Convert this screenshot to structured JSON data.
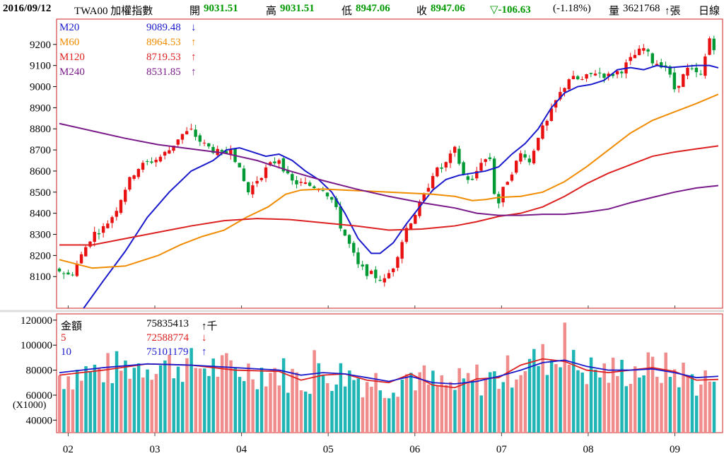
{
  "header": {
    "date": "2016/09/12",
    "index_name": "TWA00 加權指數",
    "open_label": "開",
    "open": "9031.51",
    "high_label": "高",
    "high": "9031.51",
    "low_label": "低",
    "low": "8947.06",
    "close_label": "收",
    "close": "8947.06",
    "change": "▽-106.63",
    "change_pct": "(-1.18%)",
    "volume_label": "量",
    "volume": "3621768",
    "volume_unit": "↑張",
    "period": "日線"
  },
  "legend_price": [
    {
      "name": "M20",
      "value": "9089.48",
      "arrow": "↓",
      "color": "#1a1acc"
    },
    {
      "name": "M60",
      "value": "8964.53",
      "arrow": "↑",
      "color": "#f08c00"
    },
    {
      "name": "M120",
      "value": "8719.53",
      "arrow": "↑",
      "color": "#dd2020"
    },
    {
      "name": "M240",
      "value": "8531.85",
      "arrow": "↑",
      "color": "#7a1a8a"
    }
  ],
  "legend_volume": [
    {
      "name": "金額",
      "value": "75835413",
      "arrow": "↑千",
      "color": "#000000"
    },
    {
      "name": "5",
      "value": "72588774",
      "arrow": "↓",
      "color": "#dd2020"
    },
    {
      "name": "10",
      "value": "75101179",
      "arrow": "↑",
      "color": "#1a1acc"
    }
  ],
  "volume_unit_label": "(X1000)",
  "chart_data": [
    {
      "type": "line",
      "candlestick": true,
      "x_tick_labels": [
        "02",
        "03",
        "04",
        "05",
        "06",
        "07",
        "08",
        "09"
      ],
      "y_tick_labels": [
        "8100",
        "8200",
        "8300",
        "8400",
        "8500",
        "8600",
        "8700",
        "8800",
        "8900",
        "9000",
        "9100",
        "9200"
      ],
      "ylim": [
        7950,
        9320
      ],
      "colors": {
        "up": "#e81010",
        "down": "#009933"
      },
      "series": [
        {
          "name": "M20",
          "color": "#1a1acc",
          "points": [
            [
              0,
              7800
            ],
            [
              10,
              7935
            ],
            [
              20,
              8080
            ],
            [
              30,
              8220
            ],
            [
              40,
              8380
            ],
            [
              50,
              8500
            ],
            [
              60,
              8600
            ],
            [
              70,
              8650
            ],
            [
              76,
              8700
            ],
            [
              82,
              8710
            ],
            [
              88,
              8690
            ],
            [
              94,
              8670
            ],
            [
              100,
              8680
            ],
            [
              106,
              8650
            ],
            [
              112,
              8600
            ],
            [
              118,
              8560
            ],
            [
              124,
              8500
            ],
            [
              130,
              8400
            ],
            [
              136,
              8280
            ],
            [
              142,
              8210
            ],
            [
              146,
              8210
            ],
            [
              152,
              8260
            ],
            [
              158,
              8350
            ],
            [
              164,
              8430
            ],
            [
              170,
              8510
            ],
            [
              176,
              8560
            ],
            [
              182,
              8580
            ],
            [
              188,
              8590
            ],
            [
              194,
              8600
            ],
            [
              200,
              8620
            ],
            [
              206,
              8680
            ],
            [
              212,
              8730
            ],
            [
              218,
              8800
            ],
            [
              224,
              8900
            ],
            [
              230,
              8970
            ],
            [
              236,
              9000
            ],
            [
              242,
              9010
            ],
            [
              248,
              9030
            ],
            [
              254,
              9080
            ],
            [
              260,
              9090
            ],
            [
              266,
              9080
            ],
            [
              272,
              9100
            ],
            [
              278,
              9090
            ],
            [
              284,
              9095
            ],
            [
              290,
              9100
            ],
            [
              296,
              9100
            ],
            [
              300,
              9089
            ]
          ]
        },
        {
          "name": "M60",
          "color": "#f08c00",
          "points": [
            [
              0,
              8180
            ],
            [
              15,
              8140
            ],
            [
              30,
              8150
            ],
            [
              45,
              8200
            ],
            [
              55,
              8250
            ],
            [
              65,
              8290
            ],
            [
              75,
              8320
            ],
            [
              85,
              8380
            ],
            [
              95,
              8430
            ],
            [
              103,
              8490
            ],
            [
              110,
              8510
            ],
            [
              120,
              8515
            ],
            [
              130,
              8510
            ],
            [
              140,
              8505
            ],
            [
              150,
              8500
            ],
            [
              160,
              8495
            ],
            [
              170,
              8490
            ],
            [
              180,
              8480
            ],
            [
              188,
              8460
            ],
            [
              194,
              8465
            ],
            [
              200,
              8475
            ],
            [
              210,
              8480
            ],
            [
              220,
              8500
            ],
            [
              230,
              8550
            ],
            [
              240,
              8620
            ],
            [
              250,
              8700
            ],
            [
              260,
              8780
            ],
            [
              270,
              8840
            ],
            [
              280,
              8880
            ],
            [
              290,
              8920
            ],
            [
              300,
              8964
            ]
          ]
        },
        {
          "name": "M120",
          "color": "#dd2020",
          "points": [
            [
              0,
              8250
            ],
            [
              15,
              8250
            ],
            [
              30,
              8280
            ],
            [
              45,
              8310
            ],
            [
              60,
              8340
            ],
            [
              75,
              8365
            ],
            [
              90,
              8375
            ],
            [
              105,
              8370
            ],
            [
              120,
              8355
            ],
            [
              135,
              8340
            ],
            [
              150,
              8320
            ],
            [
              165,
              8325
            ],
            [
              180,
              8340
            ],
            [
              190,
              8360
            ],
            [
              200,
              8385
            ],
            [
              210,
              8400
            ],
            [
              220,
              8430
            ],
            [
              230,
              8480
            ],
            [
              240,
              8540
            ],
            [
              250,
              8590
            ],
            [
              260,
              8630
            ],
            [
              270,
              8670
            ],
            [
              280,
              8690
            ],
            [
              290,
              8705
            ],
            [
              300,
              8719
            ]
          ]
        },
        {
          "name": "M240",
          "color": "#7a1a8a",
          "points": [
            [
              0,
              8825
            ],
            [
              15,
              8790
            ],
            [
              30,
              8755
            ],
            [
              45,
              8725
            ],
            [
              60,
              8705
            ],
            [
              75,
              8685
            ],
            [
              90,
              8650
            ],
            [
              105,
              8600
            ],
            [
              120,
              8555
            ],
            [
              135,
              8515
            ],
            [
              150,
              8480
            ],
            [
              165,
              8450
            ],
            [
              180,
              8425
            ],
            [
              190,
              8400
            ],
            [
              200,
              8390
            ],
            [
              210,
              8390
            ],
            [
              220,
              8395
            ],
            [
              230,
              8395
            ],
            [
              240,
              8405
            ],
            [
              250,
              8420
            ],
            [
              260,
              8450
            ],
            [
              270,
              8475
            ],
            [
              280,
              8500
            ],
            [
              290,
              8520
            ],
            [
              300,
              8531
            ]
          ]
        }
      ],
      "candle_path": [
        [
          0,
          8130
        ],
        [
          5,
          8100
        ],
        [
          10,
          8200
        ],
        [
          15,
          8300
        ],
        [
          20,
          8330
        ],
        [
          25,
          8400
        ],
        [
          30,
          8520
        ],
        [
          35,
          8610
        ],
        [
          40,
          8640
        ],
        [
          45,
          8660
        ],
        [
          50,
          8700
        ],
        [
          55,
          8770
        ],
        [
          60,
          8790
        ],
        [
          65,
          8730
        ],
        [
          70,
          8700
        ],
        [
          75,
          8670
        ],
        [
          78,
          8720
        ],
        [
          82,
          8600
        ],
        [
          86,
          8500
        ],
        [
          90,
          8560
        ],
        [
          95,
          8620
        ],
        [
          100,
          8660
        ],
        [
          105,
          8550
        ],
        [
          110,
          8540
        ],
        [
          115,
          8530
        ],
        [
          120,
          8520
        ],
        [
          125,
          8450
        ],
        [
          128,
          8340
        ],
        [
          132,
          8250
        ],
        [
          136,
          8150
        ],
        [
          140,
          8120
        ],
        [
          144,
          8100
        ],
        [
          148,
          8080
        ],
        [
          152,
          8150
        ],
        [
          158,
          8330
        ],
        [
          162,
          8400
        ],
        [
          166,
          8480
        ],
        [
          170,
          8590
        ],
        [
          175,
          8620
        ],
        [
          180,
          8700
        ],
        [
          184,
          8580
        ],
        [
          188,
          8550
        ],
        [
          192,
          8650
        ],
        [
          196,
          8660
        ],
        [
          199,
          8420
        ],
        [
          203,
          8540
        ],
        [
          207,
          8620
        ],
        [
          211,
          8700
        ],
        [
          214,
          8640
        ],
        [
          218,
          8770
        ],
        [
          222,
          8830
        ],
        [
          226,
          8930
        ],
        [
          232,
          9040
        ],
        [
          238,
          9030
        ],
        [
          244,
          9070
        ],
        [
          250,
          9050
        ],
        [
          256,
          9080
        ],
        [
          262,
          9150
        ],
        [
          266,
          9180
        ],
        [
          270,
          9120
        ],
        [
          276,
          9100
        ],
        [
          280,
          8990
        ],
        [
          286,
          9080
        ],
        [
          292,
          9050
        ],
        [
          296,
          9230
        ],
        [
          299,
          9170
        ],
        [
          300,
          8960
        ]
      ]
    },
    {
      "type": "bar",
      "title": "金額",
      "y_tick_labels": [
        "40000",
        "60000",
        "80000",
        "100000",
        "120000"
      ],
      "ylim": [
        30000,
        125000
      ],
      "units": "X1000",
      "series": [
        {
          "name": "5",
          "color": "#dd2020",
          "points": [
            [
              0,
              76000
            ],
            [
              20,
              80000
            ],
            [
              40,
              85000
            ],
            [
              60,
              84000
            ],
            [
              80,
              80000
            ],
            [
              100,
              79000
            ],
            [
              110,
              72000
            ],
            [
              120,
              76000
            ],
            [
              130,
              77000
            ],
            [
              140,
              72000
            ],
            [
              150,
              70000
            ],
            [
              160,
              77000
            ],
            [
              170,
              68000
            ],
            [
              180,
              66000
            ],
            [
              190,
              73000
            ],
            [
              200,
              74000
            ],
            [
              210,
              84000
            ],
            [
              220,
              89000
            ],
            [
              230,
              87000
            ],
            [
              240,
              80000
            ],
            [
              250,
              78000
            ],
            [
              260,
              80000
            ],
            [
              270,
              82000
            ],
            [
              280,
              79000
            ],
            [
              290,
              72000
            ],
            [
              300,
              72588
            ]
          ]
        },
        {
          "name": "10",
          "color": "#1a1acc",
          "points": [
            [
              0,
              78000
            ],
            [
              20,
              82000
            ],
            [
              40,
              85000
            ],
            [
              60,
              84000
            ],
            [
              80,
              82000
            ],
            [
              100,
              80000
            ],
            [
              110,
              76000
            ],
            [
              120,
              78000
            ],
            [
              130,
              77000
            ],
            [
              140,
              74000
            ],
            [
              150,
              71000
            ],
            [
              160,
              75000
            ],
            [
              170,
              70000
            ],
            [
              180,
              69000
            ],
            [
              190,
              71000
            ],
            [
              200,
              75000
            ],
            [
              210,
              80000
            ],
            [
              220,
              86000
            ],
            [
              230,
              88000
            ],
            [
              240,
              83000
            ],
            [
              250,
              80000
            ],
            [
              260,
              80000
            ],
            [
              270,
              81000
            ],
            [
              280,
              78000
            ],
            [
              290,
              74000
            ],
            [
              300,
              75101
            ]
          ]
        }
      ]
    }
  ]
}
